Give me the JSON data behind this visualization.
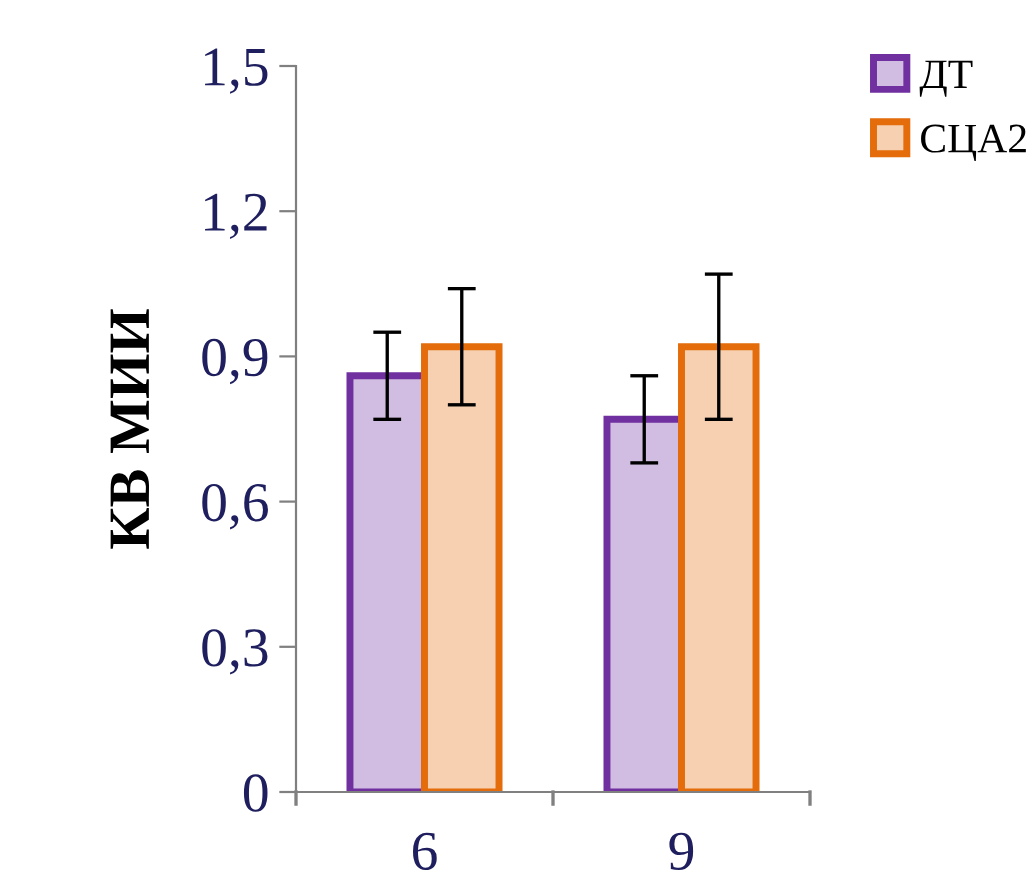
{
  "chart_data": {
    "type": "bar",
    "ylabel": "КВ МИИ",
    "categories": [
      "6",
      "9"
    ],
    "series": [
      {
        "name": "ДТ",
        "color": "#7030a0",
        "values": [
          0.86,
          0.77
        ],
        "errors": [
          0.09,
          0.09
        ]
      },
      {
        "name": "СЦА2",
        "color": "#e46c0a",
        "values": [
          0.92,
          0.92
        ],
        "errors": [
          0.12,
          0.15
        ]
      }
    ],
    "ylim": [
      0,
      1.5
    ],
    "yticks": [
      {
        "value": 0,
        "label": "0"
      },
      {
        "value": 0.3,
        "label": "0,3"
      },
      {
        "value": 0.6,
        "label": "0,6"
      },
      {
        "value": 0.9,
        "label": "0,9"
      },
      {
        "value": 1.2,
        "label": "1,2"
      },
      {
        "value": 1.5,
        "label": "1,5"
      }
    ],
    "grid": false,
    "legend": "top right"
  }
}
